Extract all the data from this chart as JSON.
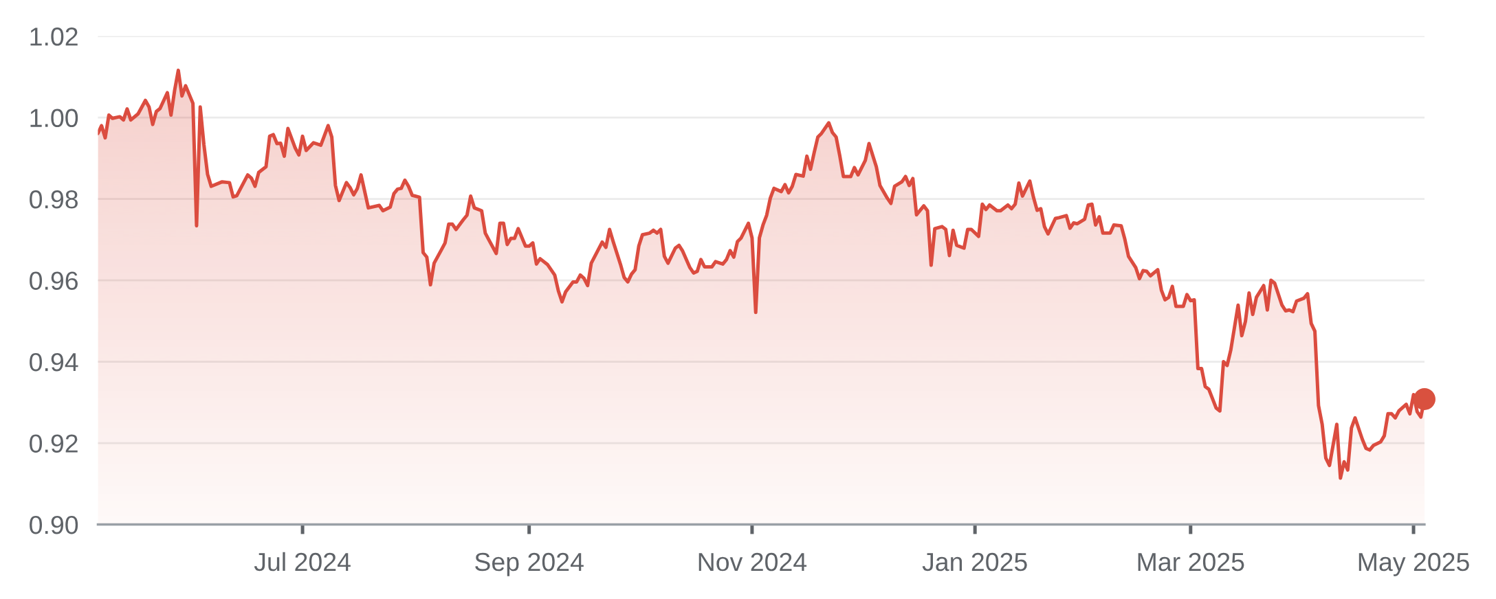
{
  "chart_data": {
    "type": "area",
    "xlim": [
      "2024-05-06",
      "2025-05-04"
    ],
    "xticks": [
      {
        "value": "2024-07-01",
        "label": "Jul 2024"
      },
      {
        "value": "2024-09-01",
        "label": "Sep 2024"
      },
      {
        "value": "2024-11-01",
        "label": "Nov 2024"
      },
      {
        "value": "2025-01-01",
        "label": "Jan 2025"
      },
      {
        "value": "2025-03-01",
        "label": "Mar 2025"
      },
      {
        "value": "2025-05-01",
        "label": "May 2025"
      }
    ],
    "ylim": [
      0.9,
      1.02
    ],
    "yticks": [
      {
        "value": 0.9,
        "label": "0.90"
      },
      0.92,
      0.94,
      0.96,
      0.98,
      {
        "value": 1.0,
        "label": "1.00"
      },
      1.02
    ],
    "grid": "y",
    "x": [
      "2024-05-06",
      "2024-05-07",
      "2024-05-08",
      "2024-05-09",
      "2024-05-10",
      "2024-05-12",
      "2024-05-13",
      "2024-05-14",
      "2024-05-15",
      "2024-05-17",
      "2024-05-19",
      "2024-05-20",
      "2024-05-21",
      "2024-05-22",
      "2024-05-23",
      "2024-05-25",
      "2024-05-26",
      "2024-05-27",
      "2024-05-28",
      "2024-05-29",
      "2024-05-30",
      "2024-06-01",
      "2024-06-02",
      "2024-06-03",
      "2024-06-04",
      "2024-06-05",
      "2024-06-06",
      "2024-06-09",
      "2024-06-11",
      "2024-06-12",
      "2024-06-13",
      "2024-06-16",
      "2024-06-17",
      "2024-06-18",
      "2024-06-19",
      "2024-06-21",
      "2024-06-22",
      "2024-06-23",
      "2024-06-24",
      "2024-06-25",
      "2024-06-26",
      "2024-06-27",
      "2024-06-29",
      "2024-06-30",
      "2024-07-01",
      "2024-07-02",
      "2024-07-04",
      "2024-07-06",
      "2024-07-08",
      "2024-07-09",
      "2024-07-10",
      "2024-07-11",
      "2024-07-13",
      "2024-07-14",
      "2024-07-15",
      "2024-07-16",
      "2024-07-17",
      "2024-07-19",
      "2024-07-22",
      "2024-07-23",
      "2024-07-25",
      "2024-07-26",
      "2024-07-27",
      "2024-07-28",
      "2024-07-29",
      "2024-07-30",
      "2024-07-31",
      "2024-08-02",
      "2024-08-03",
      "2024-08-04",
      "2024-08-05",
      "2024-08-06",
      "2024-08-08",
      "2024-08-09",
      "2024-08-10",
      "2024-08-11",
      "2024-08-12",
      "2024-08-14",
      "2024-08-15",
      "2024-08-16",
      "2024-08-17",
      "2024-08-19",
      "2024-08-20",
      "2024-08-21",
      "2024-08-23",
      "2024-08-24",
      "2024-08-25",
      "2024-08-26",
      "2024-08-27",
      "2024-08-28",
      "2024-08-29",
      "2024-08-31",
      "2024-09-01",
      "2024-09-02",
      "2024-09-03",
      "2024-09-04",
      "2024-09-06",
      "2024-09-08",
      "2024-09-09",
      "2024-09-10",
      "2024-09-11",
      "2024-09-13",
      "2024-09-14",
      "2024-09-15",
      "2024-09-16",
      "2024-09-17",
      "2024-09-18",
      "2024-09-21",
      "2024-09-22",
      "2024-09-23",
      "2024-09-24",
      "2024-09-26",
      "2024-09-27",
      "2024-09-28",
      "2024-09-29",
      "2024-09-30",
      "2024-10-01",
      "2024-10-02",
      "2024-10-04",
      "2024-10-05",
      "2024-10-06",
      "2024-10-07",
      "2024-10-08",
      "2024-10-09",
      "2024-10-11",
      "2024-10-12",
      "2024-10-13",
      "2024-10-15",
      "2024-10-16",
      "2024-10-17",
      "2024-10-18",
      "2024-10-19",
      "2024-10-21",
      "2024-10-22",
      "2024-10-24",
      "2024-10-25",
      "2024-10-26",
      "2024-10-27",
      "2024-10-28",
      "2024-10-29",
      "2024-10-31",
      "2024-11-01",
      "2024-11-02",
      "2024-11-03",
      "2024-11-04",
      "2024-11-05",
      "2024-11-06",
      "2024-11-07",
      "2024-11-09",
      "2024-11-10",
      "2024-11-11",
      "2024-11-12",
      "2024-11-13",
      "2024-11-15",
      "2024-11-16",
      "2024-11-17",
      "2024-11-18",
      "2024-11-19",
      "2024-11-20",
      "2024-11-22",
      "2024-11-23",
      "2024-11-24",
      "2024-11-25",
      "2024-11-26",
      "2024-11-28",
      "2024-11-29",
      "2024-11-30",
      "2024-12-02",
      "2024-12-03",
      "2024-12-05",
      "2024-12-06",
      "2024-12-08",
      "2024-12-09",
      "2024-12-10",
      "2024-12-12",
      "2024-12-13",
      "2024-12-14",
      "2024-12-15",
      "2024-12-16",
      "2024-12-18",
      "2024-12-19",
      "2024-12-20",
      "2024-12-21",
      "2024-12-23",
      "2024-12-24",
      "2024-12-25",
      "2024-12-26",
      "2024-12-27",
      "2024-12-29",
      "2024-12-30",
      "2024-12-31",
      "2025-01-02",
      "2025-01-03",
      "2025-01-04",
      "2025-01-05",
      "2025-01-07",
      "2025-01-08",
      "2025-01-10",
      "2025-01-11",
      "2025-01-12",
      "2025-01-13",
      "2025-01-14",
      "2025-01-16",
      "2025-01-17",
      "2025-01-18",
      "2025-01-19",
      "2025-01-20",
      "2025-01-21",
      "2025-01-23",
      "2025-01-24",
      "2025-01-26",
      "2025-01-27",
      "2025-01-28",
      "2025-01-29",
      "2025-01-31",
      "2025-02-01",
      "2025-02-02",
      "2025-02-03",
      "2025-02-04",
      "2025-02-05",
      "2025-02-07",
      "2025-02-08",
      "2025-02-10",
      "2025-02-11",
      "2025-02-12",
      "2025-02-14",
      "2025-02-15",
      "2025-02-16",
      "2025-02-17",
      "2025-02-18",
      "2025-02-20",
      "2025-02-21",
      "2025-02-22",
      "2025-02-23",
      "2025-02-24",
      "2025-02-25",
      "2025-02-27",
      "2025-02-28",
      "2025-03-01",
      "2025-03-02",
      "2025-03-03",
      "2025-03-04",
      "2025-03-05",
      "2025-03-06",
      "2025-03-08",
      "2025-03-09",
      "2025-03-10",
      "2025-03-11",
      "2025-03-12",
      "2025-03-14",
      "2025-03-15",
      "2025-03-16",
      "2025-03-17",
      "2025-03-18",
      "2025-03-19",
      "2025-03-21",
      "2025-03-22",
      "2025-03-23",
      "2025-03-24",
      "2025-03-26",
      "2025-03-27",
      "2025-03-28",
      "2025-03-29",
      "2025-03-30",
      "2025-04-01",
      "2025-04-02",
      "2025-04-03",
      "2025-04-04",
      "2025-04-05",
      "2025-04-06",
      "2025-04-07",
      "2025-04-08",
      "2025-04-10",
      "2025-04-11",
      "2025-04-12",
      "2025-04-13",
      "2025-04-14",
      "2025-04-15",
      "2025-04-17",
      "2025-04-18",
      "2025-04-19",
      "2025-04-20",
      "2025-04-22",
      "2025-04-23",
      "2025-04-24",
      "2025-04-25",
      "2025-04-26",
      "2025-04-27",
      "2025-04-29",
      "2025-04-30",
      "2025-05-01",
      "2025-05-02",
      "2025-05-03",
      "2025-05-04"
    ],
    "series": [
      {
        "color": "#db4c3f",
        "values": [
          0.9961,
          0.998,
          0.995,
          1.0006,
          0.9998,
          1.0002,
          0.9994,
          1.0021,
          0.9994,
          1.0009,
          1.0042,
          1.0026,
          0.9983,
          1.0015,
          1.0022,
          1.0061,
          1.0006,
          1.0067,
          1.0116,
          1.0053,
          1.0078,
          1.0035,
          0.9734,
          1.0026,
          0.9934,
          0.9861,
          0.9831,
          0.9842,
          0.984,
          0.9805,
          0.9808,
          0.9859,
          0.9851,
          0.9831,
          0.9865,
          0.9879,
          0.9954,
          0.9958,
          0.9936,
          0.9937,
          0.9905,
          0.9973,
          0.9925,
          0.9908,
          0.9954,
          0.9919,
          0.9938,
          0.9932,
          0.998,
          0.9952,
          0.9833,
          0.9796,
          0.984,
          0.9828,
          0.981,
          0.9826,
          0.9859,
          0.9778,
          0.9784,
          0.9771,
          0.978,
          0.9813,
          0.9824,
          0.9826,
          0.9846,
          0.9831,
          0.9809,
          0.9804,
          0.9668,
          0.9657,
          0.9589,
          0.9642,
          0.9675,
          0.9692,
          0.9738,
          0.9738,
          0.9725,
          0.9749,
          0.976,
          0.9807,
          0.9778,
          0.9771,
          0.9716,
          0.9699,
          0.9666,
          0.974,
          0.974,
          0.9688,
          0.9703,
          0.9703,
          0.9727,
          0.9684,
          0.9684,
          0.9692,
          0.964,
          0.9653,
          0.9639,
          0.9613,
          0.9574,
          0.9547,
          0.9572,
          0.9596,
          0.9596,
          0.9613,
          0.9605,
          0.9587,
          0.9642,
          0.9694,
          0.9681,
          0.9725,
          0.9695,
          0.9639,
          0.9607,
          0.9596,
          0.9615,
          0.9626,
          0.9684,
          0.9712,
          0.9716,
          0.9723,
          0.9716,
          0.9725,
          0.9659,
          0.9642,
          0.9679,
          0.9686,
          0.9672,
          0.9631,
          0.9618,
          0.9622,
          0.9651,
          0.9633,
          0.9633,
          0.9646,
          0.964,
          0.9651,
          0.9673,
          0.9657,
          0.9695,
          0.9704,
          0.974,
          0.9704,
          0.9521,
          0.9704,
          0.9736,
          0.976,
          0.9802,
          0.9826,
          0.9818,
          0.9835,
          0.9815,
          0.9831,
          0.986,
          0.9856,
          0.9905,
          0.9873,
          0.9914,
          0.9952,
          0.9961,
          0.9987,
          0.9963,
          0.9952,
          0.9906,
          0.9855,
          0.9855,
          0.9877,
          0.9859,
          0.9895,
          0.9936,
          0.9879,
          0.9833,
          0.9802,
          0.9789,
          0.9831,
          0.9842,
          0.9855,
          0.9833,
          0.985,
          0.9761,
          0.9783,
          0.9771,
          0.9637,
          0.9727,
          0.9732,
          0.9725,
          0.9661,
          0.9723,
          0.9686,
          0.9679,
          0.9725,
          0.9725,
          0.9708,
          0.9787,
          0.9774,
          0.9785,
          0.9771,
          0.9771,
          0.9785,
          0.9776,
          0.9787,
          0.9839,
          0.9807,
          0.9844,
          0.9804,
          0.9772,
          0.9776,
          0.9732,
          0.9714,
          0.9752,
          0.9754,
          0.9759,
          0.9728,
          0.9741,
          0.9739,
          0.975,
          0.9785,
          0.9787,
          0.9736,
          0.9756,
          0.9716,
          0.9716,
          0.9736,
          0.9734,
          0.9701,
          0.9659,
          0.9631,
          0.9604,
          0.9624,
          0.9622,
          0.9611,
          0.9626,
          0.9576,
          0.9552,
          0.9558,
          0.9585,
          0.9536,
          0.9536,
          0.9565,
          0.955,
          0.9552,
          0.9383,
          0.9383,
          0.9339,
          0.9332,
          0.9286,
          0.9279,
          0.94,
          0.9391,
          0.9429,
          0.9539,
          0.9464,
          0.9499,
          0.9569,
          0.9516,
          0.9558,
          0.9587,
          0.9527,
          0.96,
          0.9593,
          0.9539,
          0.9525,
          0.9527,
          0.9523,
          0.9549,
          0.9556,
          0.9567,
          0.9494,
          0.9475,
          0.9292,
          0.9246,
          0.9163,
          0.9145,
          0.9246,
          0.9114,
          0.9154,
          0.9134,
          0.9237,
          0.9262,
          0.9209,
          0.9187,
          0.9183,
          0.9194,
          0.9203,
          0.9218,
          0.9272,
          0.9272,
          0.9262,
          0.9279,
          0.9295,
          0.9272,
          0.9319,
          0.9277,
          0.9264,
          0.9308
        ]
      },
      {
        "type": "scatter",
        "color": "#d9513f",
        "marker": "circle",
        "x": [
          "2025-05-04"
        ],
        "values": [
          0.9308
        ]
      }
    ]
  }
}
